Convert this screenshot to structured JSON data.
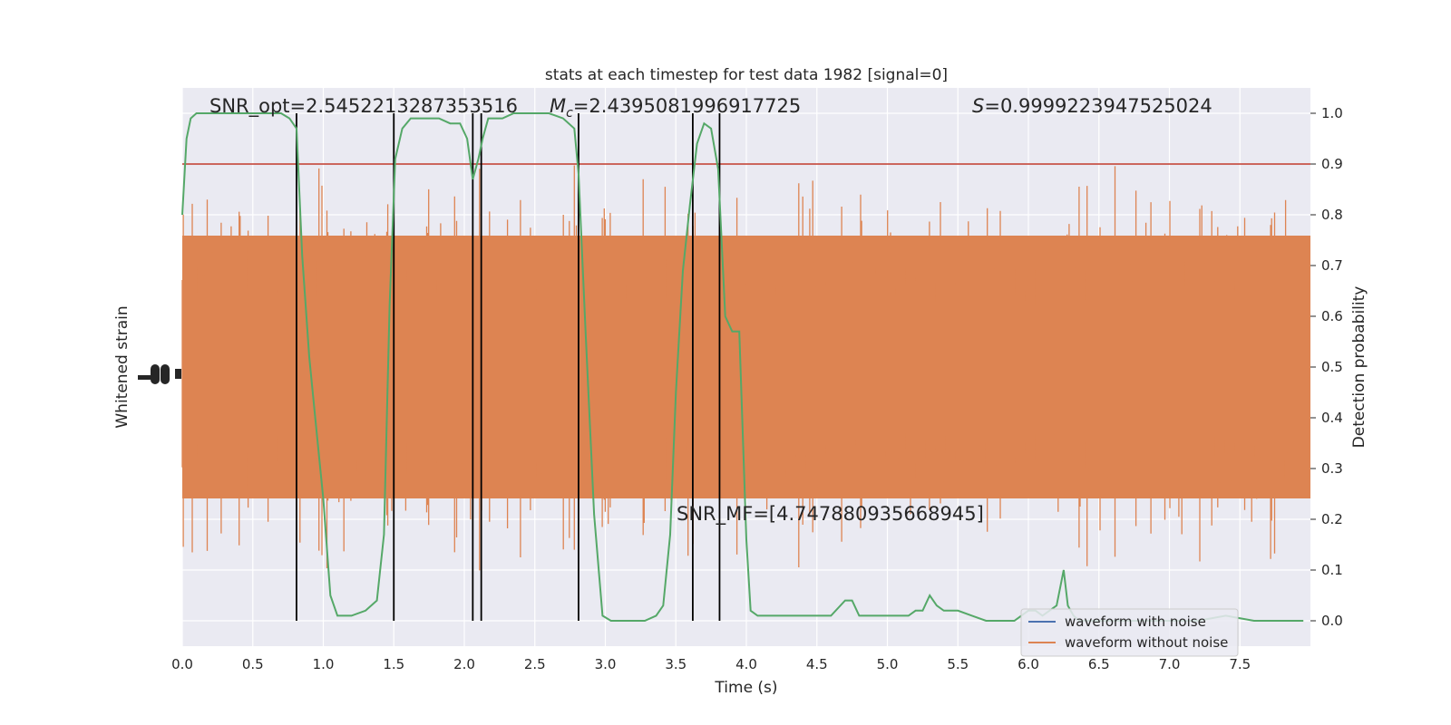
{
  "chart_data": {
    "type": "line",
    "title": "stats at each timestep for test data 1982 [signal=0]",
    "xlabel": "Time (s)",
    "ylabel_left": "Whitened strain",
    "ylabel_right": "Detection probability",
    "xlim": [
      0,
      8.0
    ],
    "ylim_right": [
      -0.05,
      1.05
    ],
    "x_ticks": [
      "0.0",
      "0.5",
      "1.0",
      "1.5",
      "2.0",
      "2.5",
      "3.0",
      "3.5",
      "4.0",
      "4.5",
      "5.0",
      "5.5",
      "6.0",
      "6.5",
      "7.0",
      "7.5"
    ],
    "x_tick_values": [
      0,
      0.5,
      1,
      1.5,
      2,
      2.5,
      3,
      3.5,
      4,
      4.5,
      5,
      5.5,
      6,
      6.5,
      7,
      7.5
    ],
    "y_ticks_right": [
      "0.0",
      "0.1",
      "0.2",
      "0.3",
      "0.4",
      "0.5",
      "0.6",
      "0.7",
      "0.8",
      "0.9",
      "1.0"
    ],
    "y_tick_values_right": [
      0,
      0.1,
      0.2,
      0.3,
      0.4,
      0.5,
      0.6,
      0.7,
      0.8,
      0.9,
      1.0
    ],
    "grid": true,
    "annotations": {
      "snr_opt": "SNR_opt=2.5452213287353516",
      "mc_symbol": "M",
      "mc_subscript": "c",
      "mc_value": "=2.4395081996917725",
      "s_symbol": "S",
      "s_value": "=0.9999223947525024",
      "snr_mf": "SNR_MF=[4.747880935668945]"
    },
    "threshold": {
      "value": 0.9,
      "color": "#c0392b"
    },
    "vertical_lines": [
      0.81,
      1.5,
      2.06,
      2.12,
      2.81,
      3.62,
      3.81
    ],
    "series": [
      {
        "name": "waveform with noise",
        "color": "#4c72b0"
      },
      {
        "name": "waveform without noise",
        "color": "#dd8452"
      }
    ],
    "detection_probability": {
      "color": "#55a868",
      "x": [
        0.0,
        0.03,
        0.06,
        0.1,
        0.15,
        0.2,
        0.3,
        0.4,
        0.5,
        0.6,
        0.7,
        0.76,
        0.81,
        0.85,
        0.9,
        0.95,
        1.0,
        1.05,
        1.1,
        1.15,
        1.2,
        1.3,
        1.38,
        1.43,
        1.47,
        1.51,
        1.56,
        1.62,
        1.68,
        1.75,
        1.82,
        1.9,
        1.97,
        2.02,
        2.06,
        2.1,
        2.13,
        2.17,
        2.22,
        2.27,
        2.35,
        2.42,
        2.5,
        2.6,
        2.7,
        2.78,
        2.81,
        2.86,
        2.92,
        2.98,
        3.04,
        3.1,
        3.18,
        3.28,
        3.36,
        3.41,
        3.46,
        3.5,
        3.55,
        3.6,
        3.65,
        3.7,
        3.75,
        3.8,
        3.85,
        3.9,
        3.95,
        4.0,
        4.03,
        4.08,
        4.12,
        4.16,
        4.2,
        4.3,
        4.4,
        4.5,
        4.6,
        4.7,
        4.75,
        4.8,
        4.85,
        5.0,
        5.05,
        5.15,
        5.2,
        5.25,
        5.3,
        5.35,
        5.4,
        5.45,
        5.5,
        5.6,
        5.7,
        5.8,
        5.9,
        6.0,
        6.05,
        6.1,
        6.15,
        6.2,
        6.25,
        6.28,
        6.32,
        6.36,
        6.4,
        6.5,
        6.6,
        6.8,
        7.0,
        7.2,
        7.4,
        7.6,
        7.8,
        7.95
      ],
      "y": [
        0.8,
        0.95,
        0.99,
        1.0,
        1.0,
        1.0,
        1.0,
        1.0,
        1.0,
        1.0,
        1.0,
        0.99,
        0.97,
        0.72,
        0.52,
        0.38,
        0.24,
        0.05,
        0.01,
        0.01,
        0.01,
        0.02,
        0.04,
        0.17,
        0.62,
        0.91,
        0.97,
        0.99,
        0.99,
        0.99,
        0.99,
        0.98,
        0.98,
        0.95,
        0.87,
        0.91,
        0.95,
        0.99,
        0.99,
        0.99,
        1.0,
        1.0,
        1.0,
        1.0,
        0.99,
        0.97,
        0.88,
        0.57,
        0.21,
        0.01,
        0.0,
        0.0,
        0.0,
        0.0,
        0.01,
        0.03,
        0.17,
        0.45,
        0.69,
        0.82,
        0.94,
        0.98,
        0.97,
        0.89,
        0.6,
        0.57,
        0.57,
        0.16,
        0.02,
        0.01,
        0.01,
        0.01,
        0.01,
        0.01,
        0.01,
        0.01,
        0.01,
        0.04,
        0.04,
        0.01,
        0.01,
        0.01,
        0.01,
        0.01,
        0.02,
        0.02,
        0.05,
        0.03,
        0.02,
        0.02,
        0.02,
        0.01,
        0.0,
        0.0,
        0.0,
        0.02,
        0.02,
        0.01,
        0.02,
        0.03,
        0.1,
        0.03,
        0.01,
        0.0,
        0.0,
        0.0,
        0.0,
        0.0,
        0.0,
        0.0,
        0.01,
        0.0,
        0.0,
        0.0
      ]
    }
  },
  "legend": {
    "placement": "lower-right"
  }
}
